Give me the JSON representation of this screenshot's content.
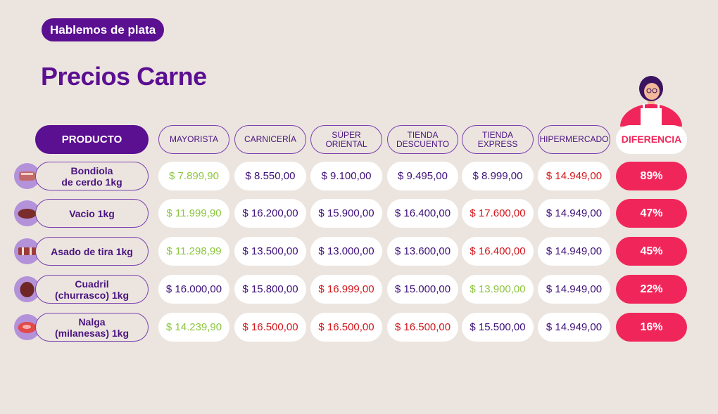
{
  "badge": "Hablemos de plata",
  "title": "Precios Carne",
  "headers": {
    "product": "PRODUCTO",
    "stores": [
      "MAYORISTA",
      "CARNICERÍA",
      "SÚPER\nORIENTAL",
      "TIENDA\nDESCUENTO",
      "TIENDA\nEXPRESS",
      "HIPERMERCADO"
    ],
    "diff": "DIFERENCIA"
  },
  "colors": {
    "green": "#8cc63f",
    "purple": "#3d1078",
    "red": "#d3161c",
    "diff": "#f0265a",
    "brand": "#5b0f91"
  },
  "rows": [
    {
      "product": "Bondiola\nde cerdo 1kg",
      "icon": "pork-shoulder-icon",
      "prices": [
        "$ 7.899,90",
        "$ 8.550,00",
        "$ 9.100,00",
        "$ 9.495,00",
        "$ 8.999,00",
        "$ 14.949,00"
      ],
      "price_colors": [
        "green",
        "purple",
        "purple",
        "purple",
        "purple",
        "red"
      ],
      "diff": "89%"
    },
    {
      "product": "Vacio 1kg",
      "icon": "flank-steak-icon",
      "prices": [
        "$ 11.999,90",
        "$ 16.200,00",
        "$ 15.900,00",
        "$ 16.400,00",
        "$ 17.600,00",
        "$ 14.949,00"
      ],
      "price_colors": [
        "green",
        "purple",
        "purple",
        "purple",
        "red",
        "purple"
      ],
      "diff": "47%"
    },
    {
      "product": "Asado de tira 1kg",
      "icon": "short-ribs-icon",
      "prices": [
        "$ 11.298,99",
        "$ 13.500,00",
        "$ 13.000,00",
        "$ 13.600,00",
        "$ 16.400,00",
        "$ 14.949,00"
      ],
      "price_colors": [
        "green",
        "purple",
        "purple",
        "purple",
        "red",
        "purple"
      ],
      "diff": "45%"
    },
    {
      "product": "Cuadril\n(churrasco) 1kg",
      "icon": "rump-steak-icon",
      "prices": [
        "$ 16.000,00",
        "$ 15.800,00",
        "$ 16.999,00",
        "$ 15.000,00",
        "$ 13.900,00",
        "$ 14.949,00"
      ],
      "price_colors": [
        "purple",
        "purple",
        "red",
        "purple",
        "green",
        "purple"
      ],
      "diff": "22%"
    },
    {
      "product": "Nalga\n(milanesas) 1kg",
      "icon": "round-steak-icon",
      "prices": [
        "$ 14.239,90",
        "$ 16.500,00",
        "$ 16.500,00",
        "$ 16.500,00",
        "$ 15.500,00",
        "$ 14.949,00"
      ],
      "price_colors": [
        "green",
        "red",
        "red",
        "red",
        "purple",
        "purple"
      ],
      "diff": "16%"
    }
  ]
}
